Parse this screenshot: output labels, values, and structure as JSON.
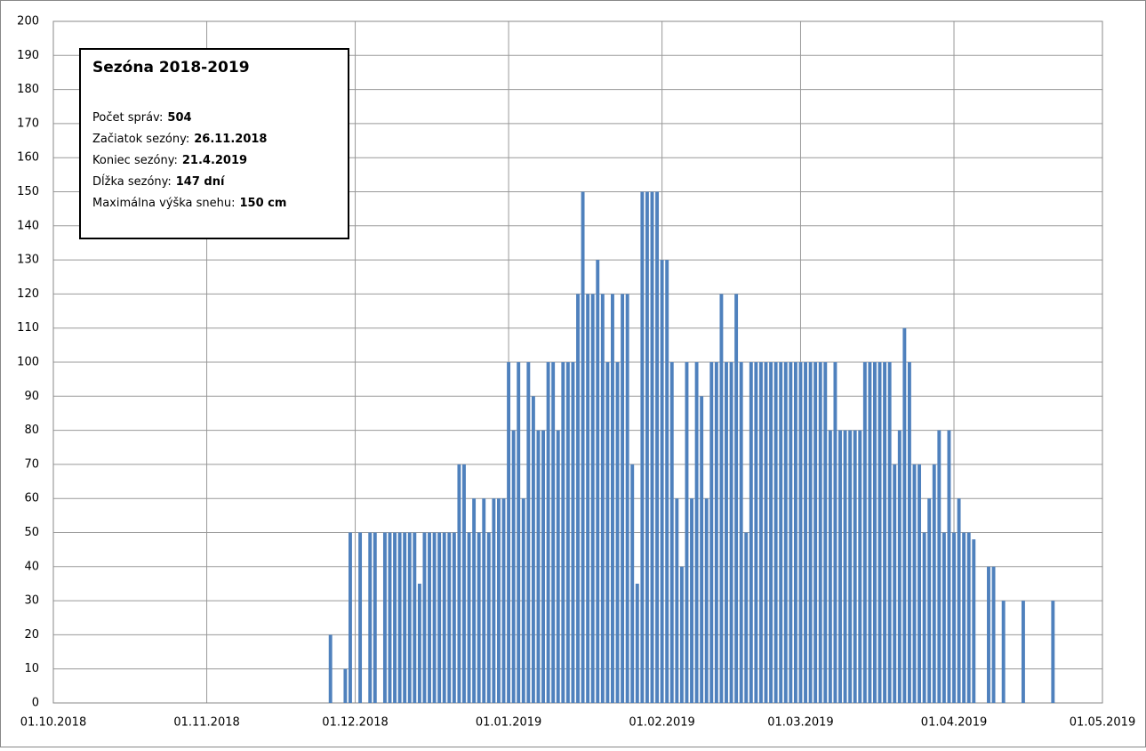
{
  "chart_data": {
    "type": "bar",
    "color": "#4f81bd",
    "grid": true,
    "annotation": {
      "title": "Sezóna 2018-2019",
      "items": [
        {
          "label": "Počet správ:",
          "value": "504"
        },
        {
          "label": "Začiatok sezóny:",
          "value": "26.11.2018"
        },
        {
          "label": "Koniec sezóny:",
          "value": "21.4.2019"
        },
        {
          "label": "Dĺžka sezóny:",
          "value": "147 dní"
        },
        {
          "label": "Maximálna výška snehu:",
          "value": "150 cm"
        }
      ]
    },
    "xlim": [
      "01.10.2018",
      "01.05.2019"
    ],
    "xticks": [
      "01.10.2018",
      "01.11.2018",
      "01.12.2018",
      "01.01.2019",
      "01.02.2019",
      "01.03.2019",
      "01.04.2019",
      "01.05.2019"
    ],
    "ylim": [
      0,
      200
    ],
    "yticks": [
      0,
      10,
      20,
      30,
      40,
      50,
      60,
      70,
      80,
      90,
      100,
      110,
      120,
      130,
      140,
      150,
      160,
      170,
      180,
      190,
      200
    ],
    "x": [
      "26.11.2018",
      "29.11.2018",
      "30.11.2018",
      "02.12.2018",
      "04.12.2018",
      "05.12.2018",
      "07.12.2018",
      "08.12.2018",
      "09.12.2018",
      "10.12.2018",
      "11.12.2018",
      "12.12.2018",
      "13.12.2018",
      "14.12.2018",
      "15.12.2018",
      "16.12.2018",
      "17.12.2018",
      "18.12.2018",
      "19.12.2018",
      "20.12.2018",
      "21.12.2018",
      "22.12.2018",
      "23.12.2018",
      "24.12.2018",
      "25.12.2018",
      "26.12.2018",
      "27.12.2018",
      "28.12.2018",
      "29.12.2018",
      "30.12.2018",
      "31.12.2018",
      "01.01.2019",
      "02.01.2019",
      "03.01.2019",
      "04.01.2019",
      "05.01.2019",
      "06.01.2019",
      "07.01.2019",
      "08.01.2019",
      "09.01.2019",
      "10.01.2019",
      "11.01.2019",
      "12.01.2019",
      "13.01.2019",
      "14.01.2019",
      "15.01.2019",
      "16.01.2019",
      "17.01.2019",
      "18.01.2019",
      "19.01.2019",
      "20.01.2019",
      "21.01.2019",
      "22.01.2019",
      "23.01.2019",
      "24.01.2019",
      "25.01.2019",
      "26.01.2019",
      "27.01.2019",
      "28.01.2019",
      "29.01.2019",
      "30.01.2019",
      "31.01.2019",
      "01.02.2019",
      "02.02.2019",
      "03.02.2019",
      "04.02.2019",
      "05.02.2019",
      "06.02.2019",
      "07.02.2019",
      "08.02.2019",
      "09.02.2019",
      "10.02.2019",
      "11.02.2019",
      "12.02.2019",
      "13.02.2019",
      "14.02.2019",
      "15.02.2019",
      "16.02.2019",
      "17.02.2019",
      "18.02.2019",
      "19.02.2019",
      "20.02.2019",
      "21.02.2019",
      "22.02.2019",
      "23.02.2019",
      "24.02.2019",
      "25.02.2019",
      "26.02.2019",
      "27.02.2019",
      "28.02.2019",
      "01.03.2019",
      "02.03.2019",
      "03.03.2019",
      "04.03.2019",
      "05.03.2019",
      "06.03.2019",
      "07.03.2019",
      "08.03.2019",
      "09.03.2019",
      "10.03.2019",
      "11.03.2019",
      "12.03.2019",
      "13.03.2019",
      "14.03.2019",
      "15.03.2019",
      "16.03.2019",
      "17.03.2019",
      "18.03.2019",
      "19.03.2019",
      "20.03.2019",
      "21.03.2019",
      "22.03.2019",
      "23.03.2019",
      "24.03.2019",
      "25.03.2019",
      "26.03.2019",
      "27.03.2019",
      "28.03.2019",
      "29.03.2019",
      "30.03.2019",
      "31.03.2019",
      "01.04.2019",
      "02.04.2019",
      "03.04.2019",
      "04.04.2019",
      "05.04.2019",
      "08.04.2019",
      "09.04.2019",
      "11.04.2019",
      "15.04.2019",
      "21.04.2019"
    ],
    "values": [
      20,
      10,
      50,
      50,
      50,
      50,
      50,
      50,
      50,
      50,
      50,
      50,
      50,
      35,
      50,
      50,
      50,
      50,
      50,
      50,
      50,
      70,
      70,
      50,
      60,
      50,
      60,
      50,
      60,
      60,
      60,
      100,
      80,
      100,
      60,
      100,
      90,
      80,
      80,
      100,
      100,
      80,
      100,
      100,
      100,
      120,
      150,
      120,
      120,
      130,
      120,
      100,
      120,
      100,
      120,
      120,
      70,
      35,
      150,
      150,
      150,
      150,
      130,
      130,
      100,
      60,
      40,
      100,
      60,
      100,
      90,
      60,
      100,
      100,
      120,
      100,
      100,
      120,
      100,
      50,
      100,
      100,
      100,
      100,
      100,
      100,
      100,
      100,
      100,
      100,
      100,
      100,
      100,
      100,
      100,
      100,
      80,
      100,
      80,
      80,
      80,
      80,
      80,
      100,
      100,
      100,
      100,
      100,
      100,
      70,
      80,
      110,
      100,
      70,
      70,
      50,
      60,
      70,
      80,
      50,
      80,
      50,
      60,
      50,
      50,
      48,
      40,
      40,
      30,
      30,
      30
    ]
  }
}
